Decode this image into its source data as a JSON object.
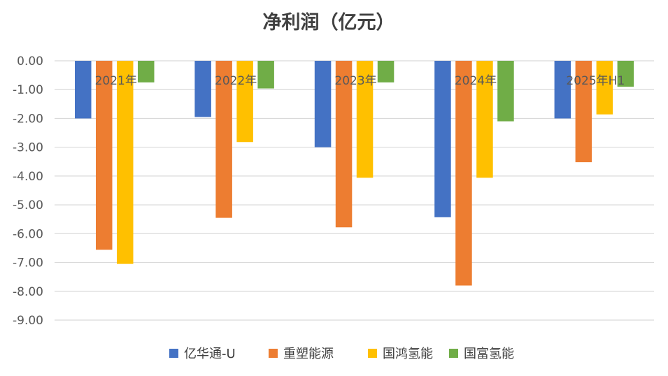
{
  "chart_data": {
    "type": "bar",
    "title": "净利润（亿元）",
    "categories": [
      "2021年",
      "2022年",
      "2023年",
      "2024年",
      "2025年H1"
    ],
    "series": [
      {
        "name": "亿华通-U",
        "color": "#4472C4",
        "values": [
          -2.0,
          -1.95,
          -3.0,
          -5.43,
          -2.0
        ]
      },
      {
        "name": "重塑能源",
        "color": "#ED7D31",
        "values": [
          -6.56,
          -5.45,
          -5.78,
          -7.8,
          -3.52
        ]
      },
      {
        "name": "国鸿氢能",
        "color": "#FFC000",
        "values": [
          -7.05,
          -2.82,
          -4.06,
          -4.06,
          -1.86
        ]
      },
      {
        "name": "国富氢能",
        "color": "#70AD47",
        "values": [
          -0.75,
          -0.96,
          -0.75,
          -2.1,
          -0.9
        ]
      }
    ],
    "yticks": [
      "0.00",
      "-1.00",
      "-2.00",
      "-3.00",
      "-4.00",
      "-5.00",
      "-6.00",
      "-7.00",
      "-8.00",
      "-9.00"
    ],
    "ylim": [
      -9,
      0
    ],
    "grid": true,
    "legend_position": "bottom",
    "xlabel": "",
    "ylabel": ""
  }
}
